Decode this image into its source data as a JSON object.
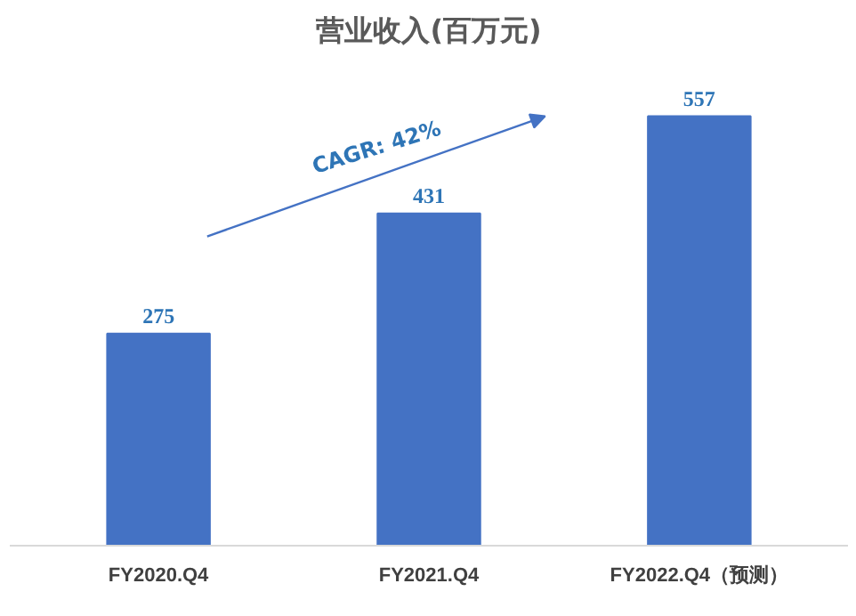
{
  "chart_data": {
    "type": "bar",
    "title": "营业收入(百万元)",
    "categories": [
      "FY2020.Q4",
      "FY2021.Q4",
      "FY2022.Q4（预测）"
    ],
    "values": [
      275,
      431,
      557
    ],
    "color": "#4472c4",
    "data_labels": true,
    "grid": false,
    "annotations": [
      "CAGR: 42%"
    ]
  }
}
